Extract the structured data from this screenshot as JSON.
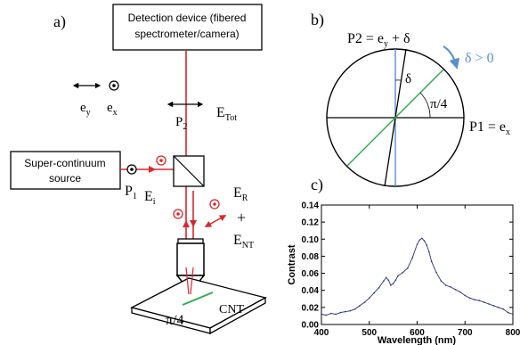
{
  "panel_a": {
    "label": "a)",
    "detection_box": {
      "line1": "Detection device (fibered",
      "line2": "spectrometer/camera)"
    },
    "source_box": {
      "line1": "Super-continuum",
      "line2": "source"
    },
    "basis": {
      "ey": "e",
      "ey_sub": "y",
      "ex": "e",
      "ex_sub": "x"
    },
    "p2": {
      "base": "P",
      "sub": "2"
    },
    "etot": {
      "base": "E",
      "sub": "Tot"
    },
    "p1": {
      "base": "P",
      "sub": "1"
    },
    "ei": {
      "base": "E",
      "sub": "i"
    },
    "er": {
      "base": "E",
      "sub": "R"
    },
    "plus": "+",
    "ent": {
      "base": "E",
      "sub": "NT"
    },
    "sample_angle": "π/4",
    "cnt": "CNT",
    "colors": {
      "beam": "#d8272e",
      "cnt": "#2fa84f",
      "ink": "#000000"
    }
  },
  "panel_b": {
    "label": "b)",
    "p2_label": "P2 = e",
    "p2_sub": "y",
    "p2_tail": " + δ",
    "delta_label": "δ > 0",
    "delta_small": "δ",
    "angle_label": "π/4",
    "p1_label": "P1 = e",
    "p1_sub": "x",
    "colors": {
      "ey_axis": "#5b8fc7",
      "diag": "#2fa84f",
      "arrow": "#5b8fc7"
    }
  },
  "panel_c": {
    "label": "c)",
    "chart_data": {
      "type": "line",
      "title": "",
      "xlabel": "Wavelength (nm)",
      "ylabel": "Contrast",
      "xlim": [
        400,
        800
      ],
      "ylim": [
        0,
        0.14
      ],
      "xticks": [
        "400",
        "500",
        "600",
        "700",
        "800"
      ],
      "yticks": [
        "0.00",
        "0.02",
        "0.04",
        "0.06",
        "0.08",
        "0.10",
        "0.12",
        "0.14"
      ],
      "series": [
        {
          "color": "#2b2f7a",
          "x": [
            400,
            410,
            420,
            430,
            440,
            450,
            460,
            470,
            480,
            490,
            500,
            510,
            520,
            530,
            535,
            540,
            545,
            550,
            555,
            560,
            570,
            580,
            590,
            600,
            605,
            610,
            615,
            620,
            625,
            630,
            640,
            650,
            660,
            670,
            680,
            690,
            700,
            710,
            720,
            730,
            740,
            750,
            760,
            770,
            780,
            790,
            800
          ],
          "y": [
            0.012,
            0.011,
            0.013,
            0.012,
            0.014,
            0.015,
            0.016,
            0.018,
            0.022,
            0.026,
            0.031,
            0.037,
            0.043,
            0.051,
            0.055,
            0.052,
            0.046,
            0.048,
            0.052,
            0.057,
            0.061,
            0.066,
            0.078,
            0.094,
            0.099,
            0.101,
            0.098,
            0.093,
            0.085,
            0.074,
            0.061,
            0.051,
            0.046,
            0.044,
            0.041,
            0.038,
            0.034,
            0.031,
            0.029,
            0.028,
            0.026,
            0.024,
            0.022,
            0.02,
            0.018,
            0.014,
            0.012
          ]
        }
      ]
    }
  }
}
